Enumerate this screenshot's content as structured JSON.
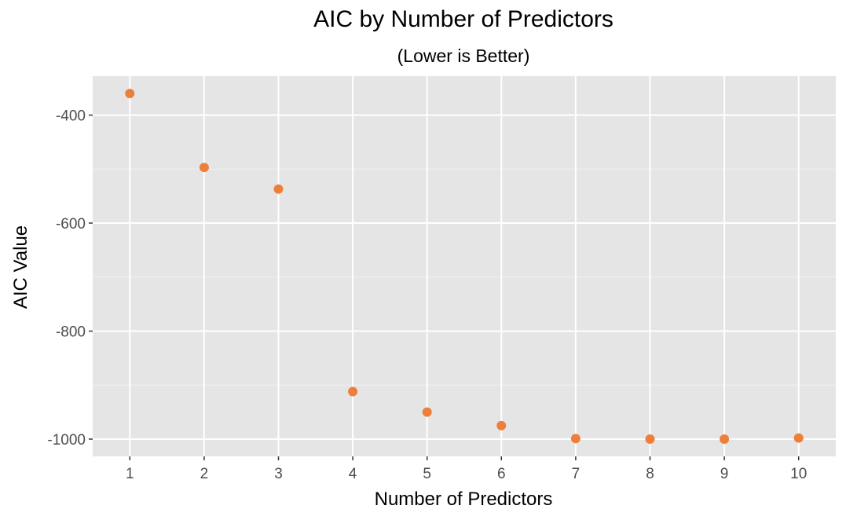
{
  "chart_data": {
    "type": "scatter",
    "title": "AIC by Number of Predictors",
    "subtitle": "(Lower is Better)",
    "xlabel": "Number of Predictors",
    "ylabel": "AIC Value",
    "x": [
      1,
      2,
      3,
      4,
      5,
      6,
      7,
      8,
      9,
      10
    ],
    "series": [
      {
        "values": [
          -360,
          -497,
          -537,
          -912,
          -950,
          -975,
          -999,
          -1000,
          -1000,
          -998
        ]
      }
    ],
    "x_ticks": [
      1,
      2,
      3,
      4,
      5,
      6,
      7,
      8,
      9,
      10
    ],
    "x_tick_labels": [
      "1",
      "2",
      "3",
      "4",
      "5",
      "6",
      "7",
      "8",
      "9",
      "10"
    ],
    "y_ticks": [
      -400,
      -600,
      -800,
      -1000
    ],
    "y_tick_labels": [
      "-400",
      "-600",
      "-800",
      "-1000"
    ],
    "xlim": [
      0.5,
      10.5
    ],
    "ylim": [
      -1032,
      -328
    ],
    "grid": true,
    "legend": "none",
    "colors": {
      "point": "#ed7f3a",
      "panel_background": "#e5e5e5",
      "grid_major": "#ffffff",
      "grid_minor": "#f2f2f2",
      "tick_text": "#4d4d4d",
      "title_text": "#000000"
    }
  }
}
